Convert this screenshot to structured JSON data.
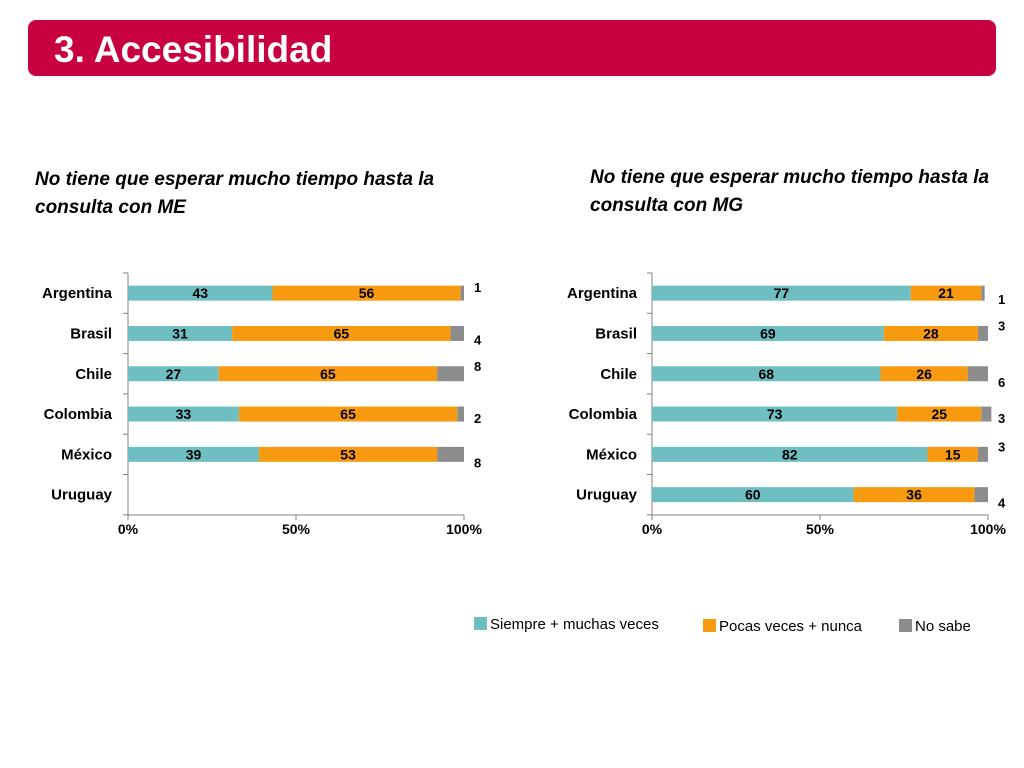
{
  "header": {
    "title": "3. Accesibilidad"
  },
  "colors": {
    "banner": "#c8003f",
    "siempre": "#6fbfc2",
    "pocas": "#f79a0f",
    "nosabe": "#8c8c8c"
  },
  "legend": {
    "siempre": "Siempre + muchas veces",
    "pocas": "Pocas veces + nunca",
    "nosabe": "No sabe"
  },
  "chart_data": [
    {
      "type": "bar",
      "stacked": true,
      "orientation": "horizontal",
      "title": "No tiene que esperar mucho tiempo hasta la consulta con ME",
      "categories": [
        "Argentina",
        "Brasil",
        "Chile",
        "Colombia",
        "México",
        "Uruguay"
      ],
      "series": [
        {
          "name": "Siempre + muchas veces",
          "values": [
            43,
            31,
            27,
            33,
            39,
            null
          ]
        },
        {
          "name": "Pocas veces + nunca",
          "values": [
            56,
            65,
            65,
            65,
            53,
            null
          ]
        },
        {
          "name": "No sabe",
          "values": [
            1,
            4,
            8,
            2,
            8,
            null
          ]
        }
      ],
      "xticks": [
        "0%",
        "50%",
        "100%"
      ],
      "xlim": [
        0,
        100
      ]
    },
    {
      "type": "bar",
      "stacked": true,
      "orientation": "horizontal",
      "title": "No tiene que esperar mucho tiempo hasta la consulta con MG",
      "categories": [
        "Argentina",
        "Brasil",
        "Chile",
        "Colombia",
        "México",
        "Uruguay"
      ],
      "series": [
        {
          "name": "Siempre + muchas veces",
          "values": [
            77,
            69,
            68,
            73,
            82,
            60
          ]
        },
        {
          "name": "Pocas veces + nunca",
          "values": [
            21,
            28,
            26,
            25,
            15,
            36
          ]
        },
        {
          "name": "No sabe",
          "values": [
            1,
            3,
            6,
            3,
            3,
            4
          ]
        }
      ],
      "xticks": [
        "0%",
        "50%",
        "100%"
      ],
      "xlim": [
        0,
        100
      ]
    }
  ]
}
